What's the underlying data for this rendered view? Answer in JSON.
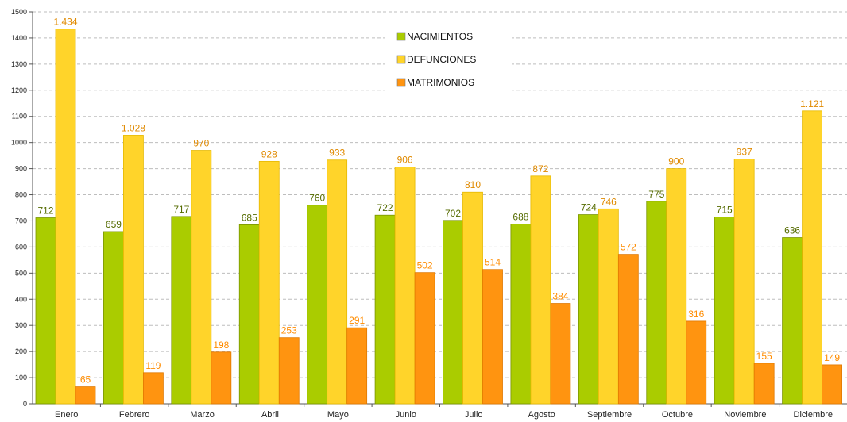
{
  "chart_data": {
    "type": "bar",
    "title": "",
    "xlabel": "",
    "ylabel": "",
    "ylim": [
      0,
      1500
    ],
    "ytick_step": 100,
    "grid": true,
    "legend_position": "top-center",
    "categories": [
      "Enero",
      "Febrero",
      "Marzo",
      "Abril",
      "Mayo",
      "Junio",
      "Julio",
      "Agosto",
      "Septiembre",
      "Octubre",
      "Noviembre",
      "Diciembre"
    ],
    "series": [
      {
        "name": "NACIMIENTOS",
        "color": "#aacc00",
        "label_color": "#556b00",
        "values": [
          712,
          659,
          717,
          685,
          760,
          722,
          702,
          688,
          724,
          775,
          715,
          636
        ],
        "labels": [
          "712",
          "659",
          "717",
          "685",
          "760",
          "722",
          "702",
          "688",
          "724",
          "775",
          "715",
          "636"
        ]
      },
      {
        "name": "DEFUNCIONES",
        "color": "#ffd42a",
        "label_color": "#e08a00",
        "values": [
          1434,
          1028,
          970,
          928,
          933,
          906,
          810,
          872,
          746,
          900,
          937,
          1121
        ],
        "labels": [
          "1.434",
          "1.028",
          "970",
          "928",
          "933",
          "906",
          "810",
          "872",
          "746",
          "900",
          "937",
          "1.121"
        ]
      },
      {
        "name": "MATRIMONIOS",
        "color": "#ff9410",
        "label_color": "#ff8c00",
        "values": [
          65,
          119,
          198,
          253,
          291,
          502,
          514,
          384,
          572,
          316,
          155,
          149
        ],
        "labels": [
          "65",
          "119",
          "198",
          "253",
          "291",
          "502",
          "514",
          "384",
          "572",
          "316",
          "155",
          "149"
        ]
      }
    ]
  }
}
